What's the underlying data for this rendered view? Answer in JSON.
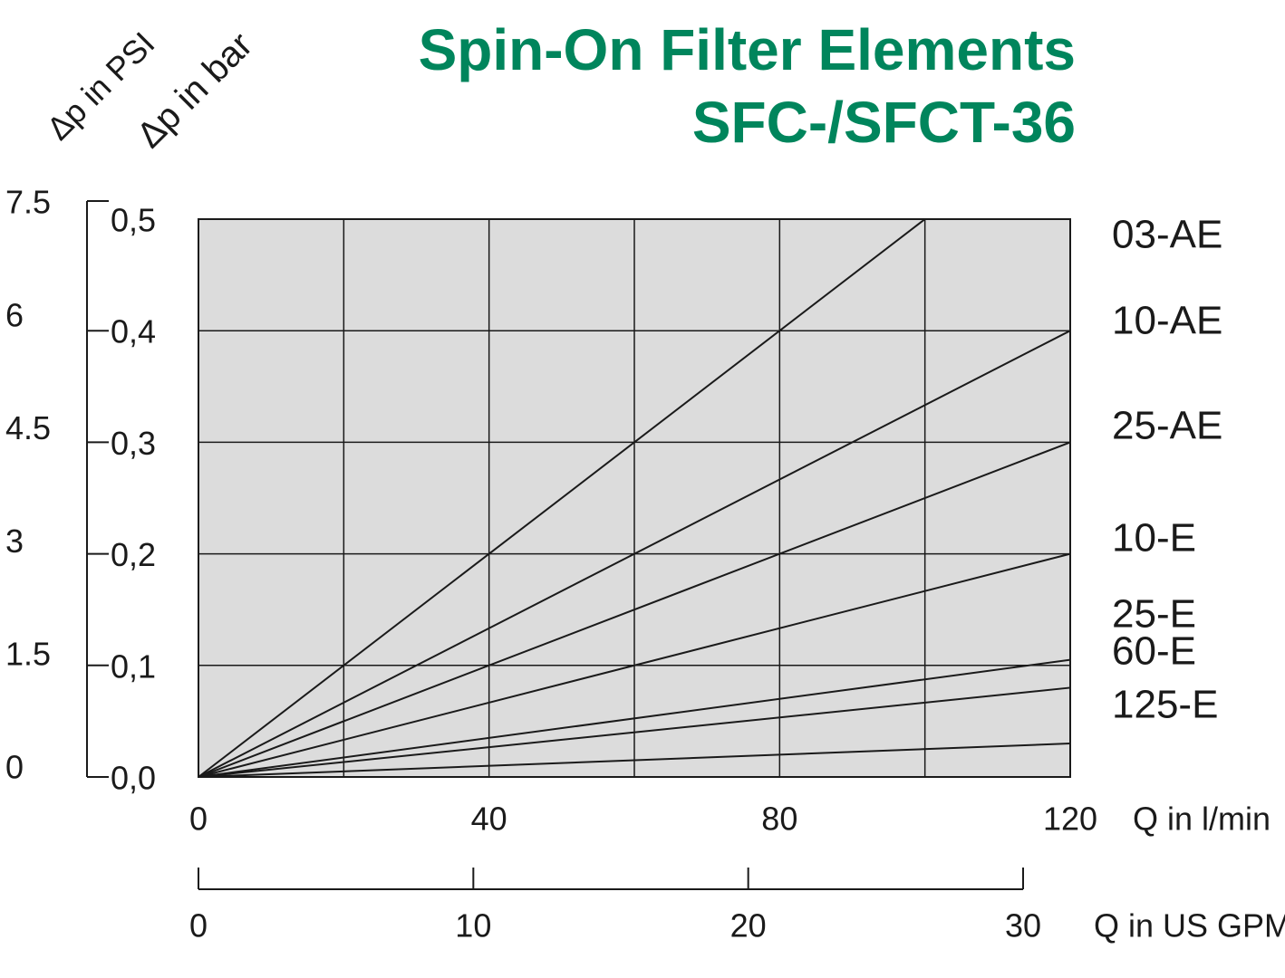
{
  "chart_data": {
    "type": "line",
    "title": "Spin-On Filter Elements",
    "subtitle": "SFC-/SFCT-36",
    "title_color": "#00855c",
    "x_label": "Q in l/min",
    "x2_label": "Q in US GPM",
    "y_label": "Δp in bar",
    "y2_label": "Δp in PSI",
    "xlim": [
      0,
      120
    ],
    "xticks": [
      0,
      40,
      80,
      120
    ],
    "xminor": [
      20,
      60,
      100
    ],
    "x2lim": [
      0,
      30
    ],
    "x2ticks": [
      0,
      10,
      20,
      30
    ],
    "ylim": [
      0,
      0.5
    ],
    "yticks": [
      {
        "value": 0,
        "label": "0,0"
      },
      {
        "value": 0.1,
        "label": "0,1"
      },
      {
        "value": 0.2,
        "label": "0,2"
      },
      {
        "value": 0.3,
        "label": "0,3"
      },
      {
        "value": 0.4,
        "label": "0,4"
      },
      {
        "value": 0.5,
        "label": "0,5"
      }
    ],
    "y2lim": [
      0,
      7.5
    ],
    "y2ticks": [
      0,
      1.5,
      3,
      4.5,
      6,
      7.5
    ],
    "grid": true,
    "background": "#dcdcdc",
    "series": [
      {
        "name": "03-AE",
        "color": "#1a1a1a",
        "x": [
          0,
          100
        ],
        "values": [
          0,
          0.5
        ]
      },
      {
        "name": "10-AE",
        "color": "#1a1a1a",
        "x": [
          0,
          120
        ],
        "values": [
          0,
          0.4
        ]
      },
      {
        "name": "25-AE",
        "color": "#1a1a1a",
        "x": [
          0,
          120
        ],
        "values": [
          0,
          0.3
        ]
      },
      {
        "name": "10-E",
        "color": "#1a1a1a",
        "x": [
          0,
          120
        ],
        "values": [
          0,
          0.2
        ]
      },
      {
        "name": "25-E",
        "color": "#1a1a1a",
        "x": [
          0,
          120
        ],
        "values": [
          0,
          0.105
        ]
      },
      {
        "name": "60-E",
        "color": "#1a1a1a",
        "x": [
          0,
          120
        ],
        "values": [
          0,
          0.08
        ]
      },
      {
        "name": "125-E",
        "color": "#1a1a1a",
        "x": [
          0,
          120
        ],
        "values": [
          0,
          0.03
        ]
      }
    ]
  }
}
